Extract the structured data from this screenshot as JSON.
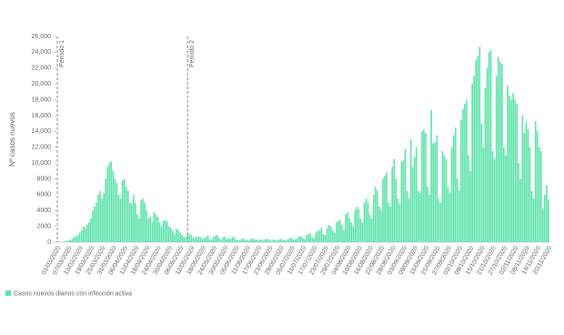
{
  "chart_data": {
    "type": "bar",
    "y_label": "Nº casos nuevos",
    "legend_label": "Casos nuevos diarios con infección activa",
    "color": "#5fe3ab",
    "ylim": [
      0,
      26000
    ],
    "yticks": [
      0,
      2000,
      4000,
      6000,
      8000,
      {
        "value": 10000,
        "label": "10,000"
      },
      {
        "value": 12000,
        "label": "12,000"
      },
      {
        "value": 14000,
        "label": "14,000"
      },
      {
        "value": 16000,
        "label": "16,000"
      },
      {
        "value": 18000,
        "label": "18,000"
      },
      {
        "value": 20000,
        "label": "20,000"
      },
      {
        "value": 22000,
        "label": "22,000"
      },
      {
        "value": 24000,
        "label": "24,000"
      },
      {
        "value": 26000,
        "label": "26,000"
      }
    ],
    "annotations": [
      {
        "text": "Periodo 1",
        "x": 0
      },
      {
        "text": "Periodo 2",
        "x": 70
      }
    ],
    "categories": [
      "01/03/2020",
      null,
      null,
      null,
      null,
      null,
      "07/03/2020",
      null,
      null,
      null,
      null,
      null,
      "13/03/2020",
      null,
      null,
      null,
      null,
      null,
      "19/03/2020",
      null,
      null,
      null,
      null,
      null,
      "25/03/2020",
      null,
      null,
      null,
      null,
      null,
      "31/03/2020",
      null,
      null,
      null,
      null,
      null,
      "06/04/2020",
      null,
      null,
      null,
      null,
      null,
      "12/04/2020",
      null,
      null,
      null,
      null,
      null,
      "18/04/2020",
      null,
      null,
      null,
      null,
      null,
      "24/04/2020",
      null,
      null,
      null,
      null,
      null,
      "30/04/2020",
      null,
      null,
      null,
      null,
      null,
      "06/05/2020",
      null,
      null,
      null,
      null,
      null,
      "12/05/2020",
      null,
      null,
      null,
      null,
      null,
      "18/05/2020",
      null,
      null,
      null,
      null,
      null,
      "24/05/2020",
      null,
      null,
      null,
      null,
      null,
      "30/05/2020",
      null,
      null,
      null,
      null,
      null,
      "05/06/2020",
      null,
      null,
      null,
      null,
      null,
      "11/06/2020",
      null,
      null,
      null,
      null,
      null,
      "17/06/2020",
      null,
      null,
      null,
      null,
      null,
      "23/06/2020",
      null,
      null,
      null,
      null,
      null,
      "29/06/2020",
      null,
      null,
      null,
      null,
      null,
      "05/07/2020",
      null,
      null,
      null,
      null,
      null,
      "11/07/2020",
      null,
      null,
      null,
      null,
      null,
      "17/07/2020",
      null,
      null,
      null,
      null,
      null,
      "23/07/2020",
      null,
      null,
      null,
      null,
      null,
      "29/07/2020",
      null,
      null,
      null,
      null,
      null,
      "04/08/2020",
      null,
      null,
      null,
      null,
      null,
      "10/08/2020",
      null,
      null,
      null,
      null,
      null,
      "16/08/2020",
      null,
      null,
      null,
      null,
      null,
      "22/08/2020",
      null,
      null,
      null,
      null,
      null,
      "28/08/2020",
      null,
      null,
      null,
      null,
      null,
      "03/09/2020",
      null,
      null,
      null,
      null,
      null,
      "09/09/2020",
      null,
      null,
      null,
      null,
      null,
      "15/09/2020",
      null,
      null,
      null,
      null,
      null,
      "21/09/2020",
      null,
      null,
      null,
      null,
      null,
      "27/09/2020",
      null,
      null,
      null,
      null,
      null,
      "03/10/2020",
      null,
      null,
      null,
      null,
      null,
      "09/10/2020",
      null,
      null,
      null,
      null,
      null,
      "15/10/2020",
      null,
      null,
      null,
      null,
      null,
      "21/10/2020",
      null,
      null,
      null,
      null,
      null,
      "27/10/2020",
      null,
      null,
      null,
      null,
      null,
      "02/11/2020",
      null,
      null,
      null,
      null,
      null,
      "08/11/2020",
      null,
      null,
      null,
      null,
      null,
      "14/11/2020",
      null,
      null,
      null,
      null,
      null,
      "20/11/2020"
    ],
    "values": [
      0,
      0,
      0,
      50,
      100,
      150,
      200,
      300,
      400,
      600,
      700,
      900,
      1200,
      1500,
      2000,
      1800,
      2200,
      2500,
      3000,
      4000,
      4500,
      5000,
      6000,
      6500,
      5500,
      6200,
      8000,
      9500,
      10000,
      10200,
      9000,
      8000,
      7500,
      6000,
      5500,
      7800,
      8000,
      7000,
      6500,
      5000,
      4800,
      6000,
      5000,
      3500,
      3000,
      5300,
      5500,
      5000,
      4000,
      3000,
      3200,
      2500,
      3800,
      3500,
      3200,
      2500,
      2000,
      2700,
      2800,
      2600,
      2000,
      1800,
      1500,
      1000,
      1700,
      1500,
      1200,
      900,
      700,
      600,
      1000,
      1000,
      900,
      600,
      500,
      700,
      700,
      600,
      400,
      500,
      700,
      800,
      400,
      300,
      700,
      800,
      900,
      500,
      300,
      600,
      700,
      400,
      500,
      400,
      600,
      700,
      300,
      300,
      200,
      400,
      500,
      300,
      300,
      200,
      400,
      500,
      300,
      350,
      200,
      300,
      300,
      200,
      400,
      400,
      300,
      200,
      300,
      300,
      200,
      350,
      400,
      300,
      300,
      200,
      400,
      500,
      600,
      300,
      400,
      500,
      700,
      800,
      500,
      400,
      900,
      1000,
      1100,
      600,
      500,
      1200,
      1500,
      1400,
      1900,
      1000,
      900,
      1800,
      2200,
      2000,
      1500,
      1200,
      2500,
      2700,
      2800,
      2200,
      1500,
      3500,
      3800,
      3000,
      2500,
      2000,
      4000,
      4500,
      4200,
      3000,
      2500,
      5000,
      5500,
      5000,
      3500,
      3000,
      6000,
      7000,
      6500,
      4500,
      4000,
      8000,
      8400,
      8800,
      5000,
      4500,
      9500,
      10500,
      8000,
      5500,
      4800,
      10200,
      10300,
      11800,
      6500,
      5500,
      13000,
      9500,
      10800,
      12000,
      6500,
      6200,
      14000,
      14300,
      13800,
      7000,
      6000,
      16700,
      12500,
      12600,
      13500,
      5500,
      5000,
      11500,
      11000,
      10500,
      7000,
      6200,
      12000,
      13500,
      14500,
      8000,
      6500,
      15500,
      16800,
      17500,
      18000,
      11000,
      9000,
      20000,
      21000,
      23000,
      23500,
      24700,
      15000,
      12000,
      19500,
      22000,
      24000,
      24300,
      11500,
      10500,
      21000,
      23400,
      22800,
      22500,
      12000,
      11000,
      19800,
      18500,
      18000,
      18800,
      18000,
      17500,
      10000,
      8000,
      16000,
      13800,
      15200,
      14300,
      12000,
      6500,
      5500,
      15300,
      14000,
      12000,
      11500,
      4200,
      6000,
      7200,
      5400
    ]
  }
}
